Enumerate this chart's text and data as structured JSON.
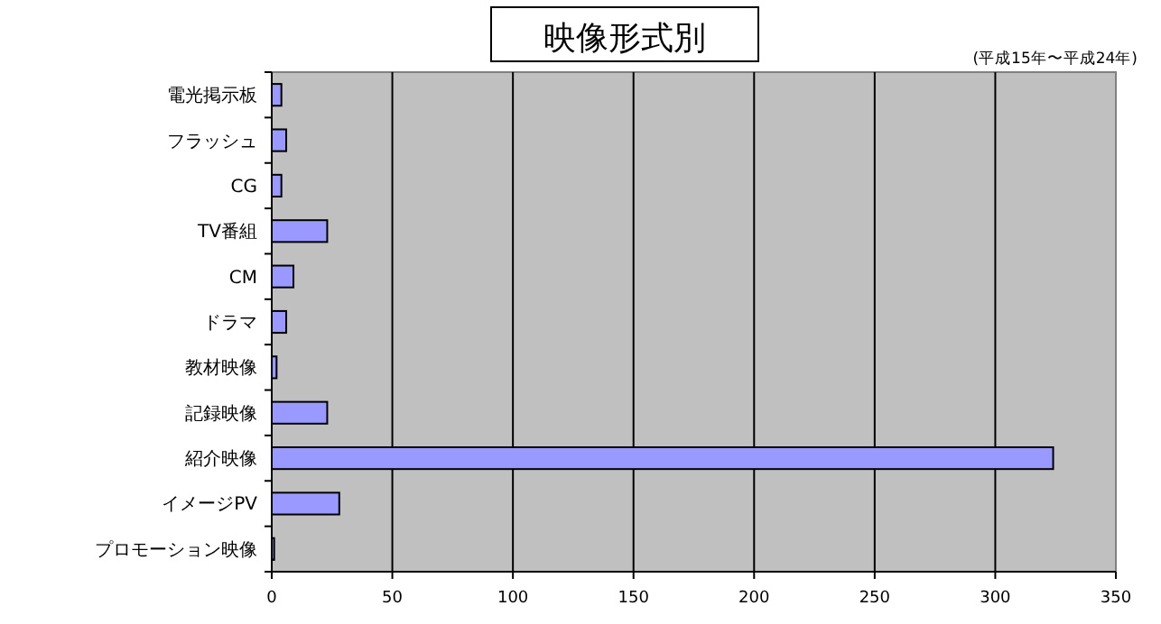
{
  "chart_data": {
    "type": "bar",
    "orientation": "horizontal",
    "title": "映像形式別",
    "subtitle": "(平成15年〜平成24年)",
    "categories": [
      "電光掲示板",
      "フラッシュ",
      "CG",
      "TV番組",
      "CM",
      "ドラマ",
      "教材映像",
      "記録映像",
      "紹介映像",
      "イメージPV",
      "プロモーション映像"
    ],
    "values": [
      4,
      6,
      4,
      23,
      9,
      6,
      2,
      23,
      324,
      28,
      1
    ],
    "color": "#9999ff",
    "xlim": [
      0,
      350
    ],
    "xticks": [
      0,
      50,
      100,
      150,
      200,
      250,
      300,
      350
    ],
    "grid": "x"
  }
}
